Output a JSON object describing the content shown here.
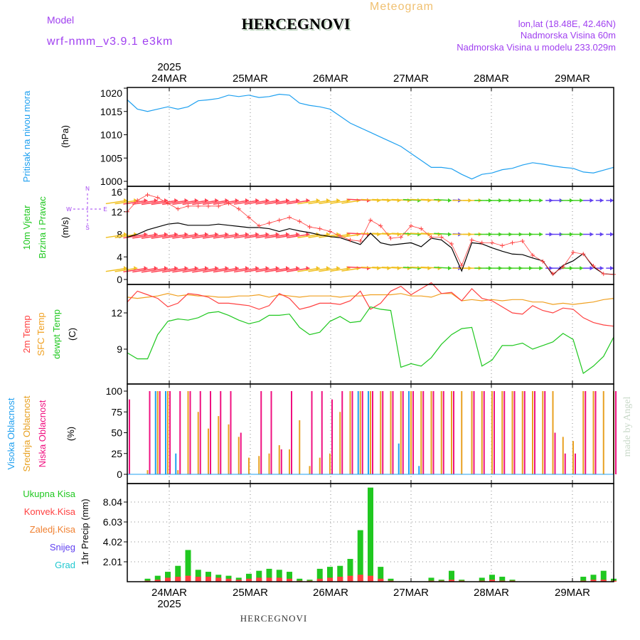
{
  "header": {
    "meteogram": "Meteogram",
    "station": "HERCEGNOVI",
    "model_label": "Model",
    "model_name": "wrf-nmm_v3.9.1 e3km",
    "lonlat": "lon,lat (18.48E, 42.46N)",
    "elevation": "Nadmorska Visina 60m",
    "model_elevation": "Nadmorska Visina u modelu 233.029m",
    "year_top": "2025",
    "year_bottom": "2025",
    "footer_station": "HERCEGNOVI",
    "credit": "made by Angel"
  },
  "colors": {
    "pressure": "#1ea0f0",
    "temp": "#ff4040",
    "sfc": "#f0a020",
    "dew": "#20c820",
    "wind": "#000000",
    "gust": "#ff4040",
    "low": "#f01080",
    "mid": "#e8a020",
    "high": "#20a0f0",
    "precip": "#20c820",
    "conv": "#ff4040",
    "snow": "#6040f0",
    "grad": "#20c8d0",
    "compass": "#a040f0"
  },
  "dates": [
    "24MAR",
    "25MAR",
    "26MAR",
    "27MAR",
    "28MAR",
    "29MAR"
  ],
  "compass": {
    "n": "N",
    "s": "S",
    "w": "W",
    "e": "E"
  },
  "chart_data": [
    {
      "type": "line",
      "title": "Pritisak na nivou mora",
      "ylabel": "(hPa)",
      "ylim": [
        1000,
        1020.5
      ],
      "yticks": [
        "1000",
        "1005",
        "1010",
        "1015",
        "1020"
      ],
      "x_step_hours": 3,
      "series": [
        {
          "name": "pressure",
          "values": [
            1017.5,
            1015.5,
            1015,
            1015.5,
            1016,
            1015.5,
            1016,
            1017.3,
            1017.5,
            1017.8,
            1018.5,
            1018.2,
            1018.5,
            1018,
            1018.2,
            1018.7,
            1018.5,
            1016.8,
            1016.3,
            1016,
            1015.5,
            1014,
            1012.5,
            1011.5,
            1010.5,
            1009.5,
            1008.5,
            1007.5,
            1006,
            1004.5,
            1003,
            1003,
            1002.7,
            1001.5,
            1000.5,
            1001.5,
            1001.8,
            1002.5,
            1002.8,
            1003.5,
            1004,
            1003.7,
            1003.3,
            1003,
            1002.8,
            1002,
            1001.8,
            1002.4,
            1003
          ]
        }
      ]
    },
    {
      "type": "line",
      "title": "10m Vjetar",
      "subtitle": "Brzina i Pravac",
      "ylabel": "(m/s)",
      "ylim": [
        -1,
        16.5
      ],
      "yticks": [
        "0",
        "4",
        "8",
        "12",
        "16"
      ],
      "x_step_hours": 3,
      "series": [
        {
          "name": "speed",
          "values": [
            7.5,
            8,
            8.8,
            9.3,
            9.8,
            10,
            9.6,
            9.6,
            9.6,
            9.8,
            9.6,
            9.4,
            9.2,
            9.2,
            9,
            8.5,
            9,
            8.6,
            8.3,
            7.9,
            7.6,
            7.4,
            6.8,
            6.2,
            8.2,
            6.5,
            6.1,
            6.3,
            6.5,
            5.8,
            7.3,
            7,
            5.6,
            1.5,
            6.5,
            6.3,
            5.6,
            5,
            4.5,
            4.4,
            3.8,
            3.3,
            0.8,
            2.5,
            3.3,
            4.6,
            2.2,
            1,
            0.9
          ]
        },
        {
          "name": "gust",
          "values": [
            12,
            14,
            15,
            14.5,
            13.5,
            12.5,
            13,
            13,
            13,
            13,
            13.5,
            12.5,
            11,
            9.5,
            10,
            10.5,
            11,
            10.3,
            9.3,
            9,
            8.5,
            7.7,
            7,
            6.8,
            10.5,
            9.5,
            7.3,
            7.5,
            9.5,
            9,
            7.5,
            7.5,
            6.3,
            2.5,
            7,
            6.5,
            6.5,
            6,
            6.5,
            6.8,
            4.3,
            3.2,
            1,
            2.2,
            4.8,
            4.5,
            2.4,
            1,
            0.9
          ]
        }
      ]
    },
    {
      "type": "line",
      "title": "2m Temp",
      "ylabel": "(C)",
      "ylim": [
        6.1,
        14.35
      ],
      "yticks": [
        "9",
        "12"
      ],
      "x_step_hours": 3,
      "series": [
        {
          "name": "2m Temp",
          "values": [
            12.9,
            13.8,
            13.5,
            13.2,
            12.5,
            12.8,
            13.6,
            13.5,
            13.3,
            12.8,
            12.8,
            12.7,
            12.6,
            12.3,
            12.6,
            13.6,
            13.2,
            12.3,
            12.5,
            12.8,
            12.8,
            12.7,
            13,
            13.8,
            12.3,
            12.8,
            13.8,
            14.2,
            13.5,
            14,
            14.5,
            13.6,
            13.7,
            13,
            14,
            13.2,
            13,
            12.5,
            12,
            11.9,
            12.6,
            12.2,
            12,
            12.4,
            12.3,
            11.6,
            11.2,
            11,
            10.9
          ]
        },
        {
          "name": "SFC Temp",
          "values": [
            13.3,
            13.2,
            13.3,
            13.4,
            13.6,
            13.4,
            13.5,
            13.4,
            13.4,
            13.3,
            13.3,
            13.4,
            13.4,
            13.5,
            13.3,
            13.5,
            13.4,
            13.3,
            13.4,
            13.4,
            13.4,
            13.3,
            13.4,
            13.4,
            13.5,
            13.5,
            13.5,
            13.6,
            13.4,
            13.4,
            13.3,
            13.6,
            13.6,
            13,
            13.1,
            13,
            13.1,
            13,
            13.1,
            13.1,
            12.9,
            12.9,
            12.7,
            12.8,
            12.7,
            12.8,
            12.9,
            13.1,
            13.2
          ]
        },
        {
          "name": "dewpt Temp",
          "values": [
            8.7,
            8.2,
            8.2,
            10.2,
            11.3,
            11.5,
            11.4,
            11.6,
            12,
            12.1,
            11.8,
            11.4,
            11.1,
            11.3,
            11.8,
            11.8,
            11.9,
            10.8,
            10.2,
            10.4,
            11.3,
            11.7,
            11.2,
            11.3,
            12.5,
            12.3,
            12.2,
            7.5,
            7.8,
            7.6,
            8.3,
            9.4,
            10.2,
            10.7,
            10.8,
            7.6,
            8.1,
            9.3,
            9.3,
            9.5,
            9,
            9.3,
            9.6,
            10.3,
            9.8,
            7,
            7.6,
            8.4,
            10
          ]
        }
      ]
    },
    {
      "type": "bar",
      "title": "Oblacnost",
      "ylabel": "(%)",
      "ylim": [
        0,
        100
      ],
      "yticks": [
        "0",
        "25",
        "50",
        "75",
        "100"
      ],
      "x_step_hours": 3,
      "series": [
        {
          "name": "Visoka Oblacnost",
          "values": [
            0,
            0,
            0,
            100,
            100,
            25,
            0,
            0,
            0,
            0,
            0,
            0,
            0,
            0,
            0,
            0,
            0,
            0,
            0,
            0,
            0,
            0,
            0,
            100,
            100,
            0,
            0,
            37,
            100,
            10,
            0,
            0,
            0,
            0,
            0,
            0,
            0,
            0,
            0,
            0,
            0,
            0,
            0,
            0,
            0,
            0,
            0,
            0,
            0
          ]
        },
        {
          "name": "Srednja Oblacnost",
          "values": [
            0,
            0,
            5,
            100,
            100,
            5,
            100,
            75,
            55,
            70,
            60,
            45,
            20,
            22,
            25,
            35,
            30,
            65,
            10,
            20,
            25,
            75,
            100,
            100,
            100,
            100,
            100,
            100,
            100,
            100,
            100,
            100,
            100,
            100,
            100,
            100,
            100,
            100,
            100,
            100,
            100,
            100,
            100,
            45,
            40,
            100,
            100,
            100,
            100
          ]
        },
        {
          "name": "Niska Oblacnost",
          "values": [
            90,
            0,
            100,
            100,
            100,
            100,
            100,
            100,
            100,
            100,
            100,
            50,
            0,
            100,
            100,
            30,
            100,
            0,
            100,
            100,
            90,
            100,
            100,
            100,
            100,
            100,
            100,
            100,
            100,
            100,
            100,
            100,
            100,
            0,
            100,
            100,
            100,
            100,
            100,
            100,
            100,
            100,
            50,
            25,
            25,
            100,
            100,
            0,
            100
          ]
        }
      ]
    },
    {
      "type": "bar",
      "title": "1hr Precip (mm)",
      "ylim": [
        0,
        10
      ],
      "yticks": [
        "2.01",
        "4.02",
        "6.03",
        "8.04"
      ],
      "x_step_hours": 3,
      "legend": [
        "Ukupna Kisa",
        "Konvek.Kisa",
        "Zaledj.Kisa",
        "Snijeg",
        "Grad"
      ],
      "series": [
        {
          "name": "Ukupna Kisa",
          "values": [
            0,
            0,
            0.3,
            0.6,
            1,
            1.6,
            3.2,
            1.2,
            1,
            0.7,
            0.6,
            0.4,
            0.8,
            1.1,
            1.3,
            1.2,
            1,
            0.3,
            0.2,
            1.3,
            1.5,
            1.6,
            2.3,
            5.2,
            9.5,
            1.5,
            0.3,
            0,
            0,
            0,
            0.4,
            0.2,
            1.1,
            0.2,
            0,
            0.4,
            0.7,
            0.5,
            0.2,
            0,
            0,
            0,
            0,
            0,
            0,
            0.5,
            0.7,
            1.1,
            0.3
          ]
        },
        {
          "name": "Konvek.Kisa",
          "values": [
            0,
            0,
            0.1,
            0.2,
            0.4,
            0.5,
            0.6,
            0.5,
            0.5,
            0.4,
            0.3,
            0.2,
            0.3,
            0.4,
            0.4,
            0.4,
            0.3,
            0.1,
            0.1,
            0.3,
            0.4,
            0.5,
            0.6,
            0.7,
            0.6,
            0.3,
            0.1,
            0,
            0,
            0,
            0.1,
            0.1,
            0.2,
            0.1,
            0,
            0.1,
            0.2,
            0.1,
            0.1,
            0,
            0,
            0,
            0,
            0,
            0,
            0.1,
            0.2,
            0.2,
            0.1
          ]
        }
      ]
    }
  ]
}
